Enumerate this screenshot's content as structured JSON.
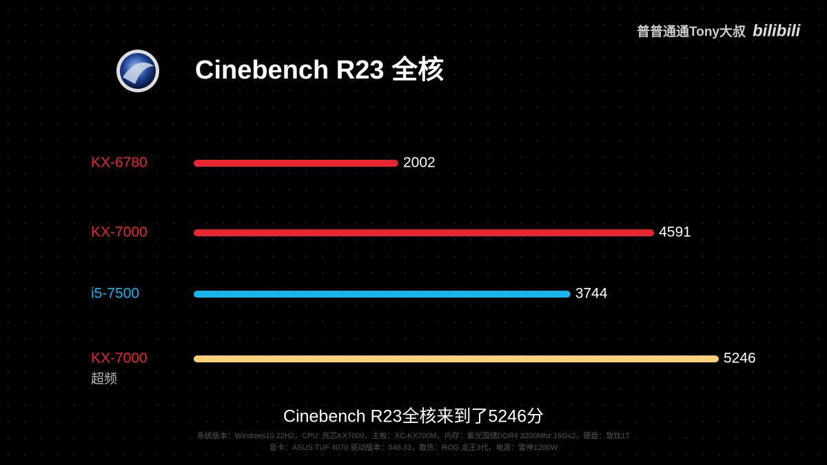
{
  "chart_data": {
    "type": "bar",
    "orientation": "horizontal",
    "title": "Cinebench R23 全核",
    "watermark": "普普通通Tony大叔",
    "brand": "bilibili",
    "categories": [
      "KX-6780",
      "KX-7000",
      "i5-7500",
      "KX-7000"
    ],
    "category_notes": [
      null,
      null,
      null,
      "超频"
    ],
    "values": [
      2002,
      4591,
      3744,
      5246
    ],
    "colors": [
      "#e8262f",
      "#e8262f",
      "#18b4ec",
      "#fbd07c"
    ],
    "label_colors": [
      "#e8262f",
      "#e8262f",
      "#18b4ec",
      "#e8262f"
    ],
    "caption": "Cinebench R23全核来到了5246分",
    "footnotes": [
      "系统版本：Windows10 22H2，CPU: 兆芯KX7000，主板：XC-KX700M，内存：紫光国储DDR4 3200Mhz 16Gx2，硬盘：致钛1T",
      "显卡：ASUS TUF 4070 驱动版本：546.33，散热：ROG 龙王3代，电源：雷神1200W"
    ]
  }
}
